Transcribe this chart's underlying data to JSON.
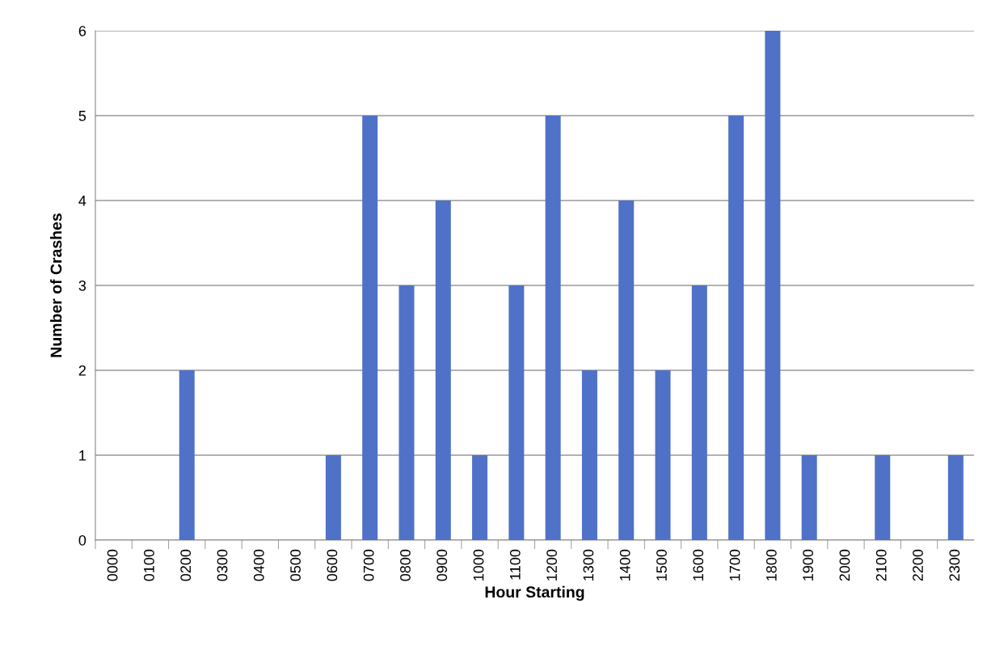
{
  "chart_data": {
    "type": "bar",
    "xlabel": "Hour Starting",
    "ylabel": "Number of Crashes",
    "categories": [
      "0000",
      "0100",
      "0200",
      "0300",
      "0400",
      "0500",
      "0600",
      "0700",
      "0800",
      "0900",
      "1000",
      "1100",
      "1200",
      "1300",
      "1400",
      "1500",
      "1600",
      "1700",
      "1800",
      "1900",
      "2000",
      "2100",
      "2200",
      "2300"
    ],
    "values": [
      0,
      0,
      2,
      0,
      0,
      0,
      1,
      5,
      3,
      4,
      1,
      3,
      5,
      2,
      4,
      2,
      3,
      5,
      6,
      1,
      0,
      1,
      0,
      1
    ],
    "color": "#4f72c8",
    "ylim": [
      0,
      6
    ],
    "yticks": [
      0,
      1,
      2,
      3,
      4,
      5,
      6
    ],
    "grid": "y",
    "legend": false
  }
}
